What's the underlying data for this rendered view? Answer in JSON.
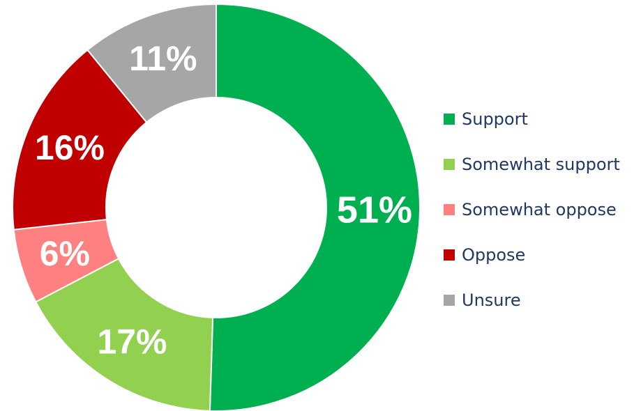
{
  "chart_data": {
    "type": "pie",
    "donut": true,
    "title": "",
    "legend_position": "right",
    "slices": [
      {
        "name": "Support",
        "value": 51,
        "label": "51%",
        "color": "#00b050"
      },
      {
        "name": "Somewhat support",
        "value": 17,
        "label": "17%",
        "color": "#92d050"
      },
      {
        "name": "Somewhat oppose",
        "value": 6,
        "label": "6%",
        "color": "#ff8080"
      },
      {
        "name": "Oppose",
        "value": 16,
        "label": "16%",
        "color": "#c00000"
      },
      {
        "name": "Unsure",
        "value": 11,
        "label": "11%",
        "color": "#a6a6a6"
      }
    ]
  }
}
